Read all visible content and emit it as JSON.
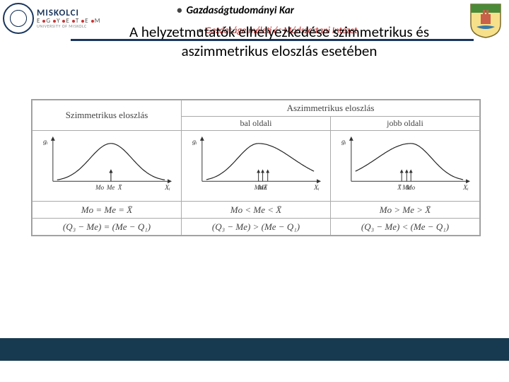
{
  "university": {
    "name": "MISKOLCI",
    "sub_letters": "EGYETEM",
    "sub_en": "UNIVERSITY OF MISKOLC"
  },
  "header": {
    "faculty": "Gazdaságtudományi Kar",
    "institute": "Gazdaságelméleti és Módszertani Intézet"
  },
  "title": {
    "line1": "A helyzetmutatók elhelyezkedése szimmetrikus és",
    "line2": "aszimmetrikus eloszlás esetében"
  },
  "table": {
    "header_colors": {
      "border": "#aaaaaa",
      "text": "#444444"
    },
    "cols": [
      {
        "header": "Szimmetrikus eloszlás",
        "sub": "",
        "colspan": 1
      },
      {
        "header": "Aszimmetrikus eloszlás",
        "sub_left": "bal oldali",
        "sub_right": "jobb oldali",
        "colspan": 2
      }
    ],
    "charts": {
      "axis_color": "#333333",
      "curve_color": "#222222",
      "tick_color": "#222222",
      "background": "#ffffff",
      "y_label": "gᵢ",
      "x_label": "Xᵢ",
      "symmetric": {
        "type": "bell",
        "skew": 0,
        "markers_order": [
          "Mo",
          "Me",
          "X̄"
        ],
        "markers_spread": 0
      },
      "left_skew": {
        "type": "bell",
        "skew": 0.35,
        "markers_order": [
          "Mo",
          "Me",
          "X̄"
        ],
        "markers_spread": 6
      },
      "right_skew": {
        "type": "bell",
        "skew": -0.35,
        "markers_order": [
          "X̄",
          "Me",
          "Mo"
        ],
        "markers_spread": 6
      }
    },
    "formula_row1": {
      "sym": "Mo = Me = X̄",
      "left": "Mo < Me < X̄",
      "right": "Mo > Me > X̄"
    },
    "formula_row2": {
      "sym": "(Q₃ − Me) = (Me − Q₁)",
      "left": "(Q₃ − Me) > (Me − Q₁)",
      "right": "(Q₃ − Me) < (Me − Q₁)"
    }
  },
  "colors": {
    "brand_navy": "#1a365d",
    "footer": "#183a50",
    "institute_text": "#b22222"
  }
}
